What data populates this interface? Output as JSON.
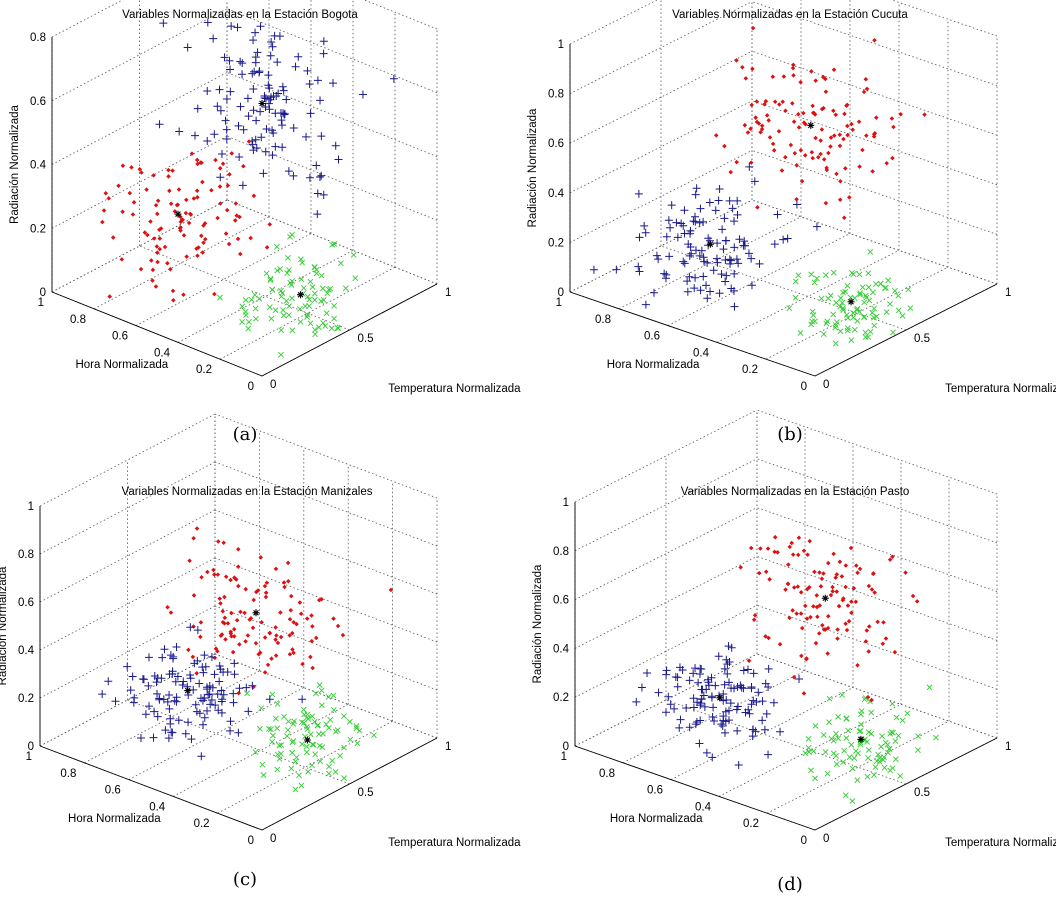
{
  "colors": {
    "cluster_x": "#33cc33",
    "cluster_plus": "#1a1a8c",
    "cluster_dot": "#dd1111",
    "centroid": "#000000",
    "grid": "#555555",
    "axis": "#000000"
  },
  "chart_data": [
    {
      "type": "scatter3d",
      "caption": "(a)",
      "title": "Variables Normalizadas en la Estación Bogota",
      "xlabel": "Hora Normalizada",
      "ylabel": "Temperatura Normalizada",
      "zlabel": "Radiación Normalizada",
      "xlim": [
        0,
        1
      ],
      "ylim": [
        0,
        1
      ],
      "zlim": [
        0,
        0.8
      ],
      "xticks": [
        "0",
        "0.2",
        "0.4",
        "0.6",
        "0.8",
        "1"
      ],
      "yticks": [
        "0",
        "0.5",
        "1"
      ],
      "zticks": [
        "0",
        "0.2",
        "0.4",
        "0.6",
        "0.8"
      ],
      "grid": true,
      "clusters": [
        {
          "marker": "x",
          "center": [
            0.15,
            0.4,
            0.1
          ],
          "spread": [
            0.1,
            0.12,
            0.07
          ],
          "count": 90
        },
        {
          "marker": "+",
          "center": [
            0.5,
            0.6,
            0.55
          ],
          "spread": [
            0.16,
            0.12,
            0.14
          ],
          "count": 120
        },
        {
          "marker": "dot",
          "center": [
            0.65,
            0.3,
            0.25
          ],
          "spread": [
            0.13,
            0.12,
            0.12
          ],
          "count": 110
        }
      ],
      "centroids": [
        [
          0.15,
          0.4,
          0.1
        ],
        [
          0.5,
          0.6,
          0.55
        ],
        [
          0.65,
          0.3,
          0.25
        ]
      ]
    },
    {
      "type": "scatter3d",
      "caption": "(b)",
      "title": "Variables Normalizadas en la Estación Cucuta",
      "xlabel": "Hora Normalizada",
      "ylabel": "Temperatura Normalizada",
      "zlabel": "Radiación Normalizada",
      "xlim": [
        0,
        1
      ],
      "ylim": [
        0,
        1
      ],
      "zlim": [
        0,
        1
      ],
      "xticks": [
        "0",
        "0.2",
        "0.4",
        "0.6",
        "0.8",
        "1"
      ],
      "yticks": [
        "0",
        "0.5",
        "1"
      ],
      "zticks": [
        "0",
        "0.2",
        "0.4",
        "0.6",
        "0.8",
        "1"
      ],
      "grid": true,
      "clusters": [
        {
          "marker": "x",
          "center": [
            0.15,
            0.4,
            0.1
          ],
          "spread": [
            0.1,
            0.1,
            0.07
          ],
          "count": 90
        },
        {
          "marker": "dot",
          "center": [
            0.5,
            0.65,
            0.6
          ],
          "spread": [
            0.16,
            0.12,
            0.14
          ],
          "count": 120
        },
        {
          "marker": "+",
          "center": [
            0.65,
            0.3,
            0.2
          ],
          "spread": [
            0.13,
            0.12,
            0.1
          ],
          "count": 110
        }
      ],
      "centroids": [
        [
          0.15,
          0.4,
          0.1
        ],
        [
          0.5,
          0.65,
          0.6
        ],
        [
          0.65,
          0.3,
          0.2
        ]
      ]
    },
    {
      "type": "scatter3d",
      "caption": "(c)",
      "title": "Variables Normalizadas en la Estación Manizales",
      "xlabel": "Hora Normalizada",
      "ylabel": "Temperatura Normalizada",
      "zlabel": "Radiación Normalizada",
      "xlim": [
        0,
        1
      ],
      "ylim": [
        0,
        1
      ],
      "zlim": [
        0,
        1
      ],
      "xticks": [
        "0",
        "0.2",
        "0.4",
        "0.6",
        "0.8",
        "1"
      ],
      "yticks": [
        "0",
        "0.5",
        "1"
      ],
      "zticks": [
        "0",
        "0.2",
        "0.4",
        "0.6",
        "0.8",
        "1"
      ],
      "grid": true,
      "clusters": [
        {
          "marker": "x",
          "center": [
            0.15,
            0.45,
            0.15
          ],
          "spread": [
            0.1,
            0.12,
            0.08
          ],
          "count": 90
        },
        {
          "marker": "dot",
          "center": [
            0.5,
            0.6,
            0.5
          ],
          "spread": [
            0.15,
            0.12,
            0.12
          ],
          "count": 115
        },
        {
          "marker": "+",
          "center": [
            0.65,
            0.4,
            0.2
          ],
          "spread": [
            0.14,
            0.12,
            0.08
          ],
          "count": 115
        }
      ],
      "centroids": [
        [
          0.15,
          0.45,
          0.15
        ],
        [
          0.5,
          0.6,
          0.5
        ],
        [
          0.65,
          0.4,
          0.2
        ]
      ]
    },
    {
      "type": "scatter3d",
      "caption": "(d)",
      "title": "Variables Normalizadas en la Estación Pasto",
      "xlabel": "Hora Normalizada",
      "ylabel": "Temperatura Normalizada",
      "zlabel": "Radiación Normalizada",
      "xlim": [
        0,
        1
      ],
      "ylim": [
        0,
        1
      ],
      "zlim": [
        0,
        1
      ],
      "xticks": [
        "0",
        "0.2",
        "0.4",
        "0.6",
        "0.8",
        "1"
      ],
      "yticks": [
        "0",
        "0.5",
        "1"
      ],
      "zticks": [
        "0",
        "0.2",
        "0.4",
        "0.6",
        "0.8",
        "1"
      ],
      "grid": true,
      "clusters": [
        {
          "marker": "x",
          "center": [
            0.15,
            0.45,
            0.15
          ],
          "spread": [
            0.1,
            0.12,
            0.08
          ],
          "count": 90
        },
        {
          "marker": "dot",
          "center": [
            0.45,
            0.65,
            0.55
          ],
          "spread": [
            0.13,
            0.1,
            0.13
          ],
          "count": 115
        },
        {
          "marker": "+",
          "center": [
            0.7,
            0.4,
            0.15
          ],
          "spread": [
            0.13,
            0.1,
            0.07
          ],
          "count": 115
        }
      ],
      "centroids": [
        [
          0.15,
          0.45,
          0.15
        ],
        [
          0.45,
          0.65,
          0.55
        ],
        [
          0.7,
          0.4,
          0.15
        ]
      ]
    }
  ]
}
